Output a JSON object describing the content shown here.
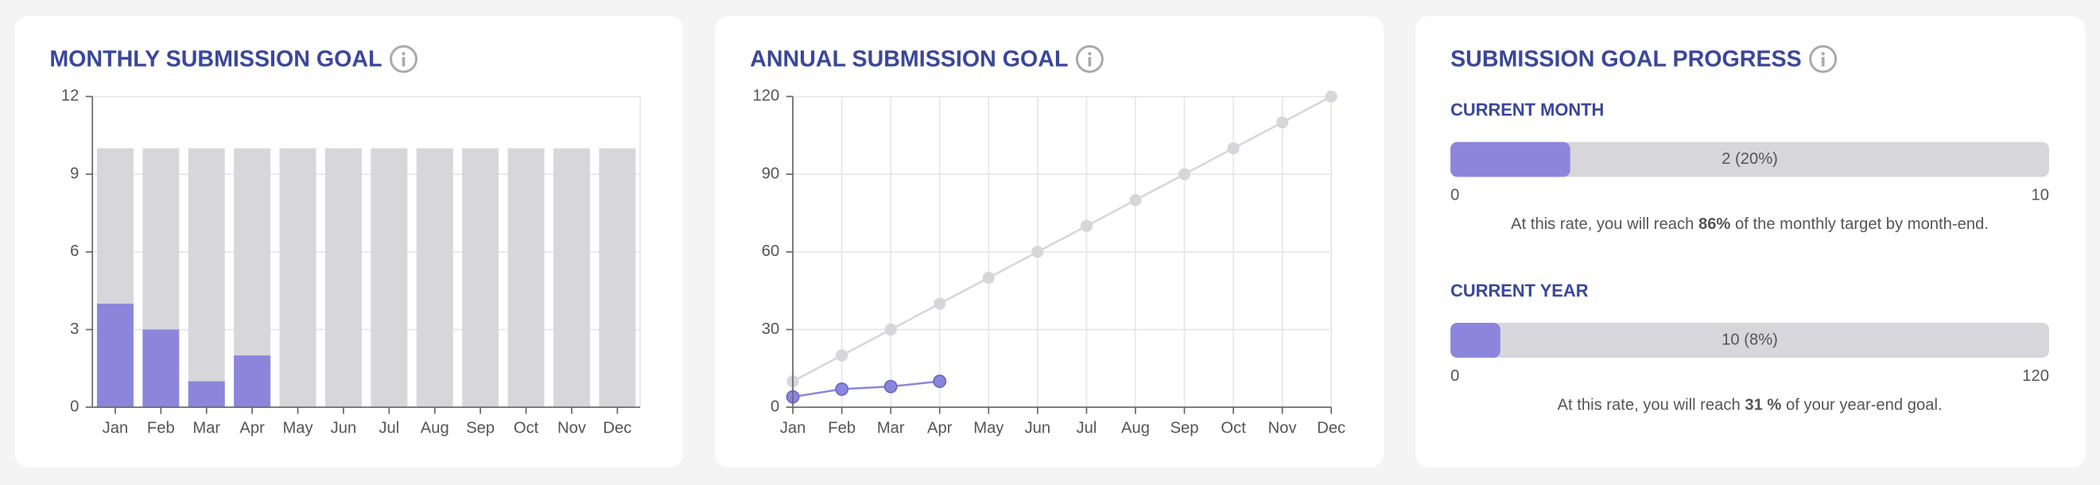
{
  "chart_data": [
    {
      "type": "bar",
      "title": "MONTHLY SUBMISSION GOAL",
      "categories": [
        "Jan",
        "Feb",
        "Mar",
        "Apr",
        "May",
        "Jun",
        "Jul",
        "Aug",
        "Sep",
        "Oct",
        "Nov",
        "Dec"
      ],
      "series": [
        {
          "color": "#d6d6db",
          "values": [
            10,
            10,
            10,
            10,
            10,
            10,
            10,
            10,
            10,
            10,
            10,
            10
          ]
        },
        {
          "color": "#8b86db",
          "values": [
            4,
            3,
            1,
            2,
            null,
            null,
            null,
            null,
            null,
            null,
            null,
            null
          ]
        }
      ],
      "ylim": [
        0,
        12
      ],
      "yticks": [
        0,
        3,
        6,
        9,
        12
      ],
      "grid": true
    },
    {
      "type": "line",
      "title": "ANNUAL SUBMISSION GOAL",
      "categories": [
        "Jan",
        "Feb",
        "Mar",
        "Apr",
        "May",
        "Jun",
        "Jul",
        "Aug",
        "Sep",
        "Oct",
        "Nov",
        "Dec"
      ],
      "series": [
        {
          "color": "#d6d6db",
          "values": [
            10,
            20,
            30,
            40,
            50,
            60,
            70,
            80,
            90,
            100,
            110,
            120
          ]
        },
        {
          "color": "#8b86db",
          "values": [
            4,
            7,
            8,
            10,
            null,
            null,
            null,
            null,
            null,
            null,
            null,
            null
          ]
        }
      ],
      "ylim": [
        0,
        120
      ],
      "yticks": [
        0,
        30,
        60,
        90,
        120
      ],
      "grid": true
    }
  ],
  "progress": {
    "title": "SUBMISSION GOAL PROGRESS",
    "color": "#8b86db",
    "track": "#d6d6db",
    "sections": [
      {
        "label": "CURRENT MONTH",
        "value": 2,
        "value_label": "2 (20%)",
        "min": 0,
        "max": 10,
        "note": {
          "before": "At this rate, you will reach ",
          "bold": "86%",
          "after": " of the monthly target by month-end."
        }
      },
      {
        "label": "CURRENT YEAR",
        "value": 10,
        "value_label": "10 (8%)",
        "min": 0,
        "max": 120,
        "note": {
          "before": "At this rate, you will reach ",
          "bold": "31 %",
          "after": " of your year-end goal."
        }
      }
    ]
  }
}
